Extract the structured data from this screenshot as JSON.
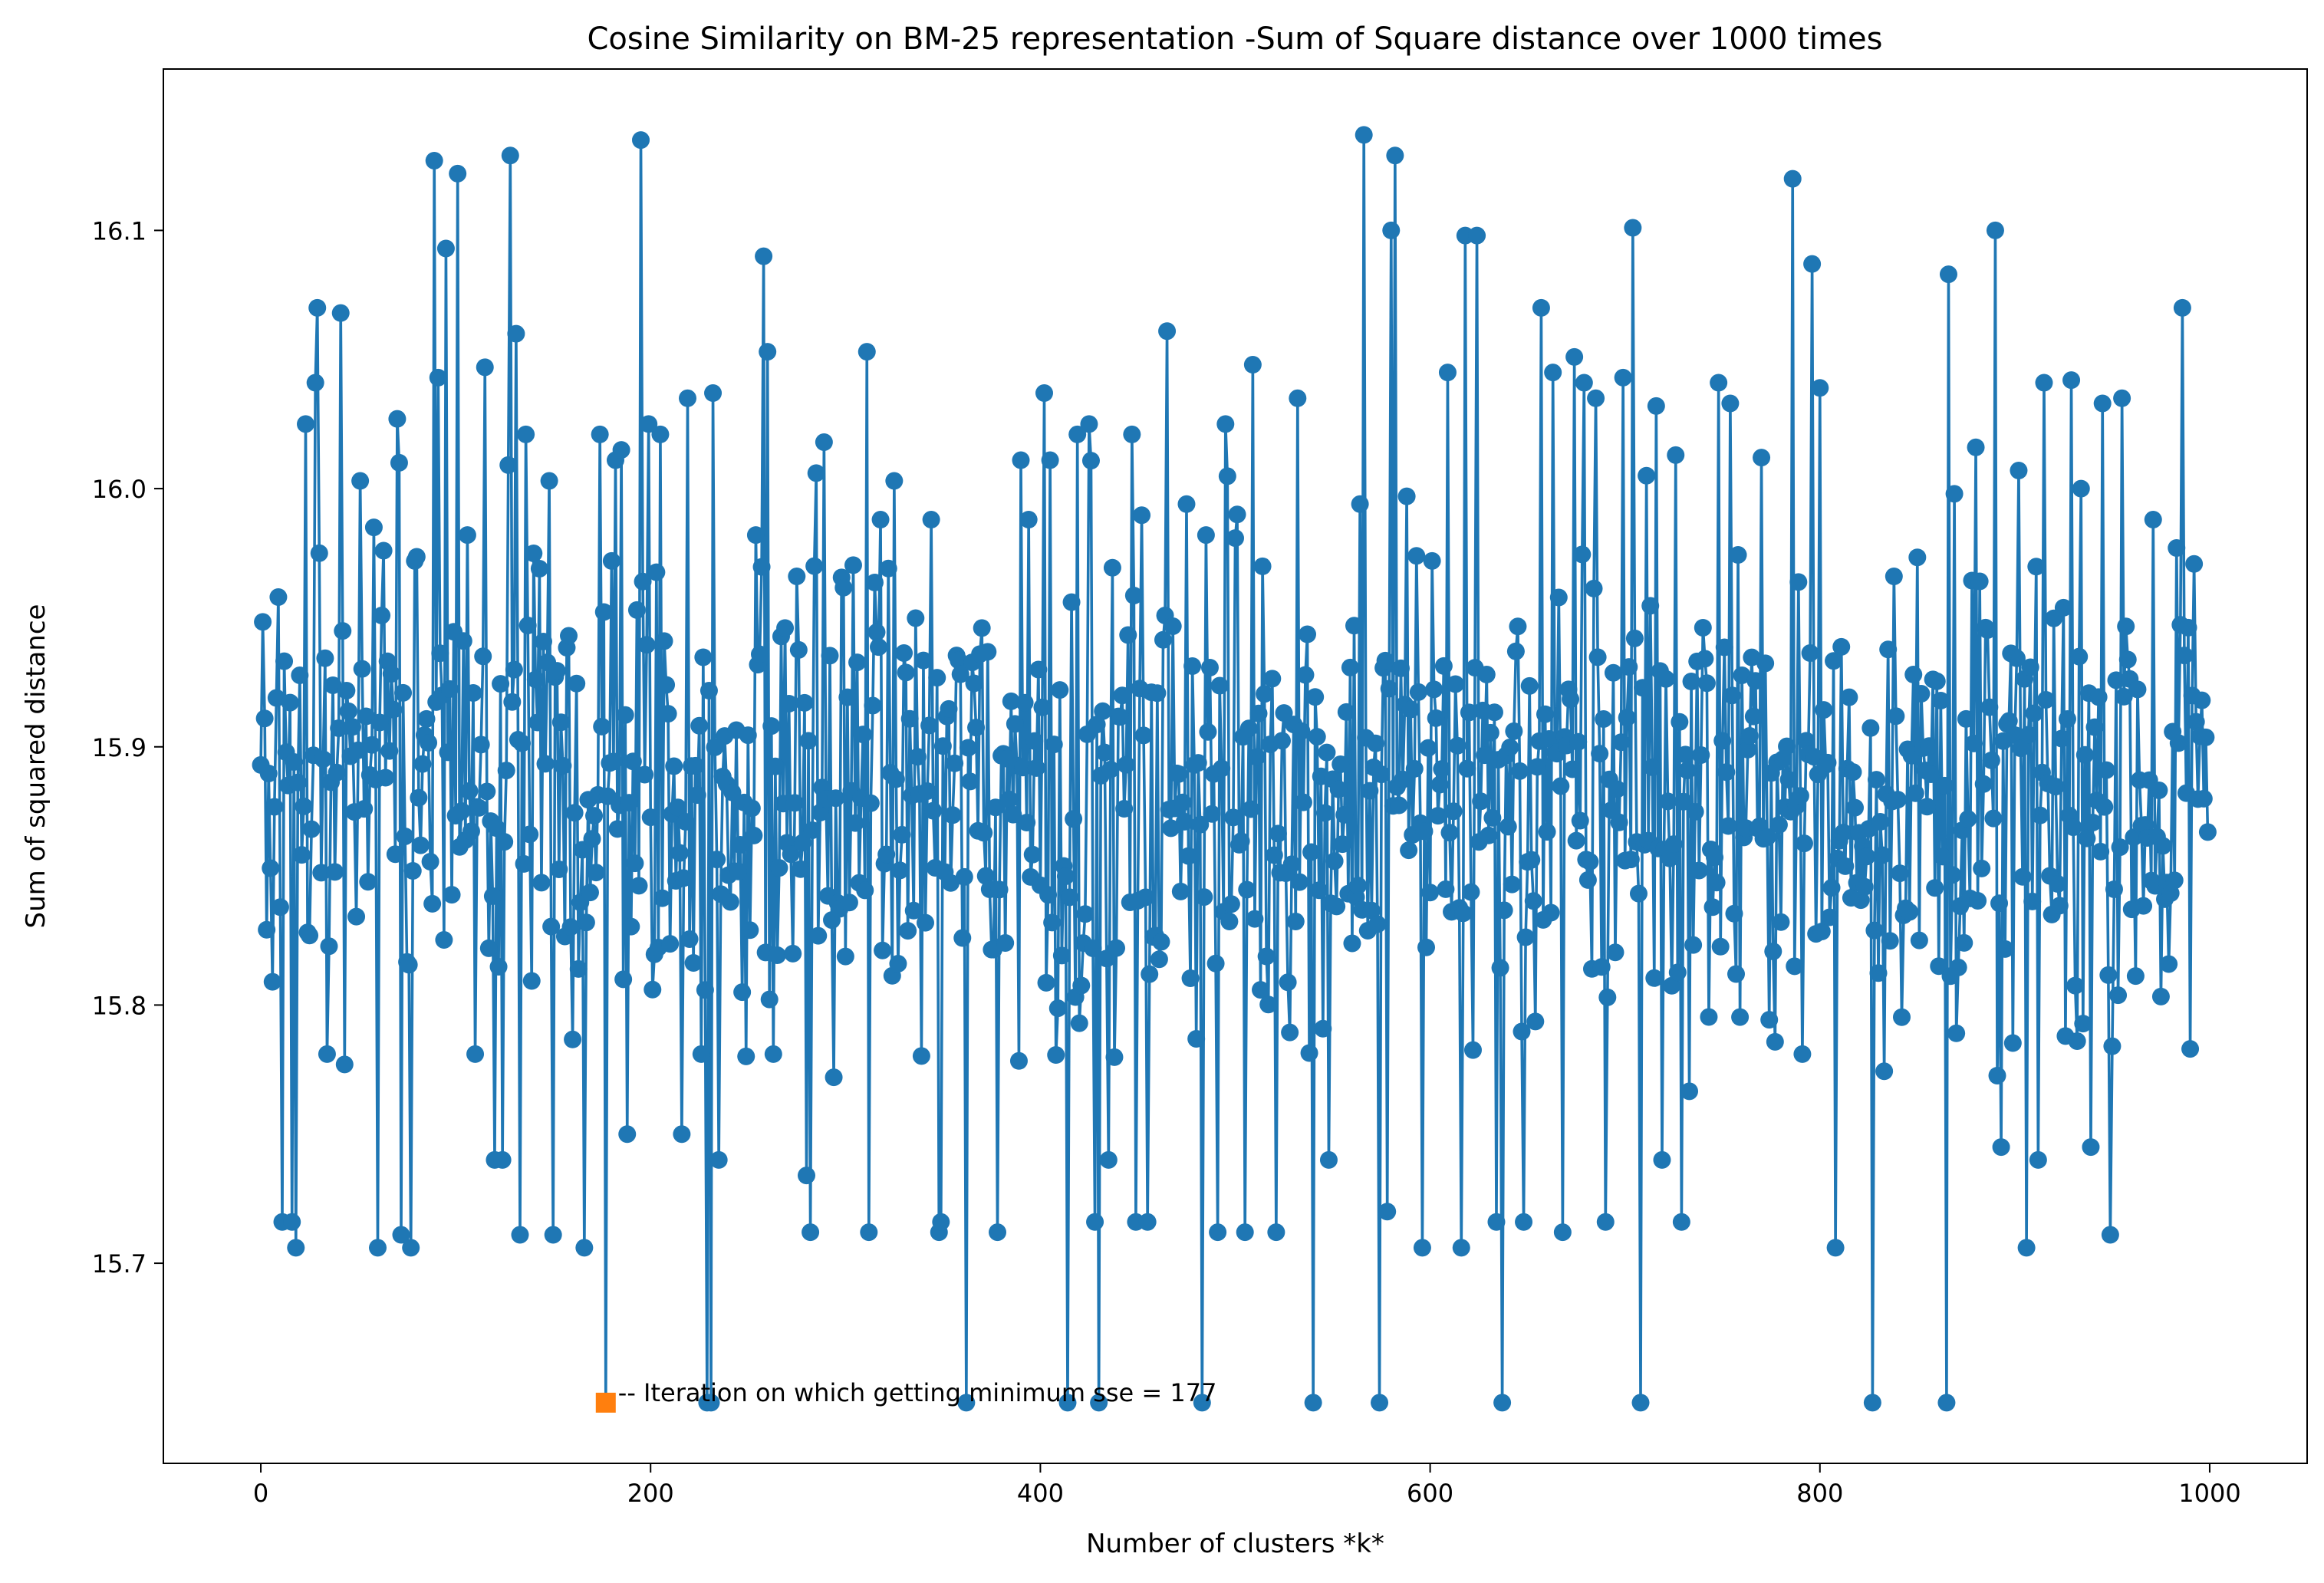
{
  "chart_data": {
    "type": "line",
    "title": "Cosine Similarity on BM-25 representation -Sum of Square distance over 1000 times",
    "xlabel": "Number of clusters *k*",
    "ylabel": "Sum of squared distance",
    "xlim": [
      -50,
      1050
    ],
    "ylim": [
      15.6225,
      16.1625
    ],
    "xticks": [
      0,
      200,
      400,
      600,
      800,
      1000
    ],
    "xtick_labels": [
      "0",
      "200",
      "400",
      "600",
      "800",
      "1000"
    ],
    "yticks": [
      15.7,
      15.8,
      15.9,
      16.0,
      16.1
    ],
    "ytick_labels": [
      "15.7",
      "15.8",
      "15.9",
      "16.0",
      "16.1"
    ],
    "grid": false,
    "series": [
      {
        "name": "sse",
        "color": "#1f77b4",
        "marker": "circle",
        "n": 1000,
        "center": 15.88,
        "noise_spread": 0.048,
        "noise_clip": [
          15.7,
          16.07
        ],
        "seed": 177,
        "key_points": [
          [
            0,
            15.893
          ],
          [
            2,
            15.911
          ],
          [
            5,
            15.853
          ],
          [
            6,
            15.809
          ],
          [
            9,
            15.958
          ],
          [
            11,
            15.716
          ],
          [
            16,
            15.716
          ],
          [
            18,
            15.706
          ],
          [
            23,
            16.025
          ],
          [
            28,
            16.041
          ],
          [
            29,
            16.07
          ],
          [
            30,
            15.975
          ],
          [
            34,
            15.781
          ],
          [
            41,
            16.068
          ],
          [
            43,
            15.777
          ],
          [
            51,
            16.003
          ],
          [
            58,
            15.985
          ],
          [
            60,
            15.706
          ],
          [
            70,
            16.027
          ],
          [
            71,
            16.01
          ],
          [
            72,
            15.711
          ],
          [
            77,
            15.706
          ],
          [
            79,
            15.972
          ],
          [
            89,
            16.127
          ],
          [
            91,
            16.043
          ],
          [
            95,
            16.093
          ],
          [
            101,
            16.122
          ],
          [
            106,
            15.982
          ],
          [
            110,
            15.781
          ],
          [
            115,
            16.047
          ],
          [
            120,
            15.74
          ],
          [
            124,
            15.74
          ],
          [
            128,
            16.129
          ],
          [
            131,
            16.06
          ],
          [
            133,
            15.711
          ],
          [
            136,
            16.021
          ],
          [
            143,
            15.969
          ],
          [
            148,
            16.003
          ],
          [
            150,
            15.711
          ],
          [
            158,
            15.943
          ],
          [
            166,
            15.706
          ],
          [
            174,
            16.021
          ],
          [
            177,
            15.646
          ],
          [
            180,
            15.972
          ],
          [
            182,
            16.011
          ],
          [
            185,
            16.015
          ],
          [
            188,
            15.75
          ],
          [
            195,
            16.135
          ],
          [
            199,
            16.025
          ],
          [
            205,
            16.021
          ],
          [
            216,
            15.75
          ],
          [
            219,
            16.035
          ],
          [
            226,
            15.781
          ],
          [
            229,
            15.646
          ],
          [
            231,
            15.646
          ],
          [
            232,
            16.037
          ],
          [
            235,
            15.74
          ],
          [
            254,
            15.982
          ],
          [
            258,
            16.09
          ],
          [
            260,
            16.053
          ],
          [
            263,
            15.781
          ],
          [
            269,
            15.946
          ],
          [
            280,
            15.734
          ],
          [
            282,
            15.712
          ],
          [
            285,
            16.006
          ],
          [
            289,
            16.018
          ],
          [
            294,
            15.772
          ],
          [
            311,
            16.053
          ],
          [
            312,
            15.712
          ],
          [
            318,
            15.988
          ],
          [
            325,
            16.003
          ],
          [
            327,
            15.816
          ],
          [
            344,
            15.988
          ],
          [
            348,
            15.712
          ],
          [
            349,
            15.716
          ],
          [
            362,
            15.646
          ],
          [
            370,
            15.946
          ],
          [
            378,
            15.712
          ],
          [
            390,
            16.011
          ],
          [
            394,
            15.988
          ],
          [
            402,
            16.037
          ],
          [
            405,
            16.011
          ],
          [
            414,
            15.646
          ],
          [
            419,
            16.021
          ],
          [
            425,
            16.025
          ],
          [
            428,
            15.716
          ],
          [
            430,
            15.646
          ],
          [
            435,
            15.74
          ],
          [
            447,
            16.021
          ],
          [
            449,
            15.716
          ],
          [
            455,
            15.716
          ],
          [
            465,
            16.061
          ],
          [
            475,
            15.994
          ],
          [
            483,
            15.646
          ],
          [
            485,
            15.982
          ],
          [
            491,
            15.712
          ],
          [
            495,
            16.025
          ],
          [
            501,
            15.99
          ],
          [
            505,
            15.712
          ],
          [
            509,
            16.048
          ],
          [
            521,
            15.712
          ],
          [
            532,
            16.035
          ],
          [
            540,
            15.646
          ],
          [
            548,
            15.74
          ],
          [
            564,
            15.994
          ],
          [
            566,
            16.137
          ],
          [
            574,
            15.646
          ],
          [
            578,
            15.72
          ],
          [
            580,
            16.1
          ],
          [
            582,
            16.129
          ],
          [
            588,
            15.997
          ],
          [
            596,
            15.706
          ],
          [
            601,
            15.972
          ],
          [
            609,
            16.045
          ],
          [
            616,
            15.706
          ],
          [
            618,
            16.098
          ],
          [
            624,
            16.098
          ],
          [
            634,
            15.716
          ],
          [
            637,
            15.646
          ],
          [
            648,
            15.716
          ],
          [
            657,
            16.07
          ],
          [
            663,
            16.045
          ],
          [
            668,
            15.712
          ],
          [
            674,
            16.051
          ],
          [
            679,
            16.041
          ],
          [
            685,
            16.035
          ],
          [
            690,
            15.716
          ],
          [
            699,
            16.043
          ],
          [
            704,
            16.101
          ],
          [
            708,
            15.646
          ],
          [
            711,
            16.005
          ],
          [
            716,
            16.032
          ],
          [
            719,
            15.74
          ],
          [
            726,
            16.013
          ],
          [
            729,
            15.716
          ],
          [
            748,
            16.041
          ],
          [
            754,
            16.033
          ],
          [
            770,
            16.012
          ],
          [
            786,
            16.12
          ],
          [
            791,
            15.781
          ],
          [
            796,
            16.087
          ],
          [
            800,
            16.039
          ],
          [
            808,
            15.706
          ],
          [
            827,
            15.646
          ],
          [
            838,
            15.966
          ],
          [
            848,
            15.928
          ],
          [
            865,
            15.646
          ],
          [
            866,
            16.083
          ],
          [
            869,
            15.998
          ],
          [
            880,
            16.016
          ],
          [
            890,
            16.1
          ],
          [
            893,
            15.745
          ],
          [
            902,
            16.007
          ],
          [
            906,
            15.706
          ],
          [
            912,
            15.74
          ],
          [
            915,
            16.041
          ],
          [
            926,
            15.788
          ],
          [
            929,
            16.042
          ],
          [
            934,
            16.0
          ],
          [
            939,
            15.745
          ],
          [
            945,
            16.033
          ],
          [
            949,
            15.711
          ],
          [
            955,
            16.035
          ],
          [
            971,
            15.988
          ],
          [
            977,
            15.841
          ],
          [
            983,
            15.977
          ],
          [
            986,
            16.07
          ],
          [
            990,
            15.783
          ],
          [
            996,
            15.918
          ],
          [
            999,
            15.867
          ]
        ]
      }
    ],
    "min_marker": {
      "iteration": 177,
      "value": 15.646,
      "color": "#ff7f0e",
      "marker": "square",
      "label": "-- Iteration on which getting minimum sse = 177"
    }
  }
}
